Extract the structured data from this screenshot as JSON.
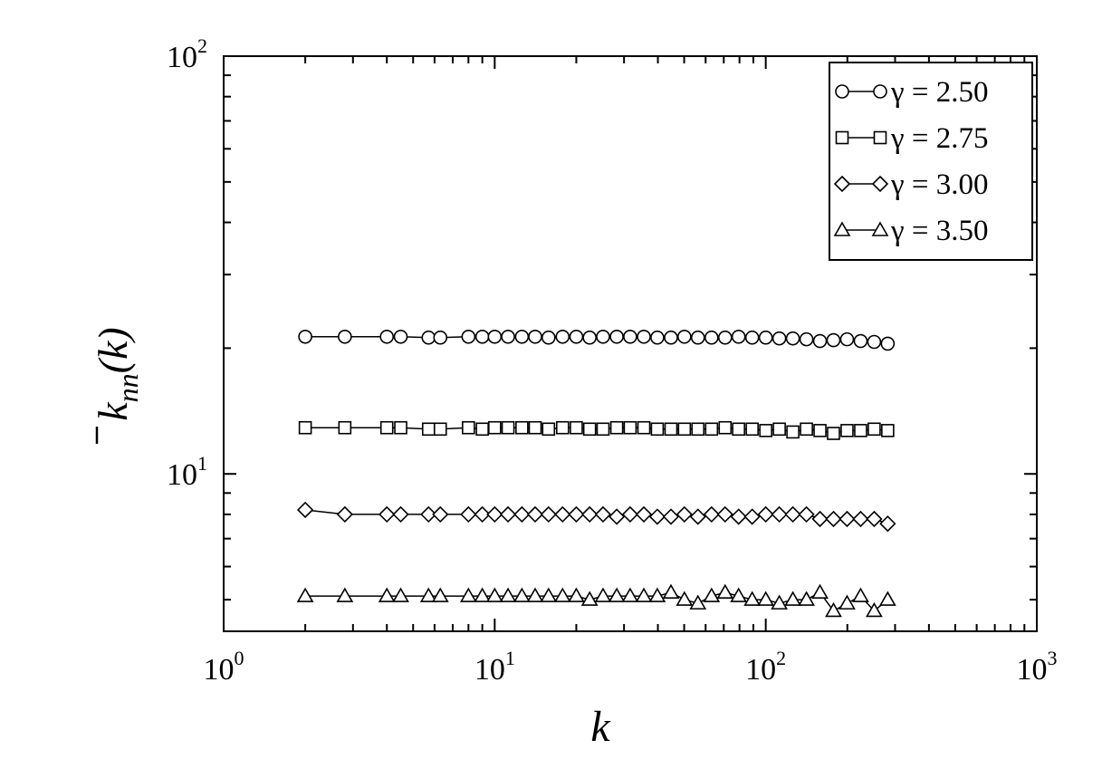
{
  "chart_data": {
    "type": "scatter",
    "xscale": "log",
    "yscale": "log",
    "xlim": [
      1,
      1000
    ],
    "ylim": [
      4.2,
      100
    ],
    "xlabel": "k",
    "ylabel": "k̄nn(k)",
    "x_tick_labels": [
      {
        "base": "10",
        "exp": "0",
        "value": 1
      },
      {
        "base": "10",
        "exp": "1",
        "value": 10
      },
      {
        "base": "10",
        "exp": "2",
        "value": 100
      },
      {
        "base": "10",
        "exp": "3",
        "value": 1000
      }
    ],
    "y_tick_labels": [
      {
        "base": "10",
        "exp": "1",
        "value": 10
      },
      {
        "base": "10",
        "exp": "2",
        "value": 100
      }
    ],
    "legend_position": "top-right",
    "grid": false,
    "x": [
      2.0,
      2.8,
      4.0,
      4.5,
      5.7,
      6.3,
      8.0,
      9.0,
      10.0,
      11.2,
      12.6,
      14.1,
      15.8,
      17.8,
      20.0,
      22.4,
      25.1,
      28.2,
      31.6,
      35.5,
      39.8,
      44.7,
      50.1,
      56.2,
      63.1,
      70.8,
      79.4,
      89.1,
      100.0,
      112.2,
      125.9,
      141.3,
      158.5,
      177.8,
      199.5,
      223.9,
      251.2,
      281.8
    ],
    "series": [
      {
        "name": "γ = 2.50",
        "marker": "circle",
        "values": [
          21.3,
          21.3,
          21.3,
          21.3,
          21.2,
          21.2,
          21.3,
          21.3,
          21.3,
          21.3,
          21.3,
          21.3,
          21.2,
          21.3,
          21.3,
          21.2,
          21.3,
          21.3,
          21.3,
          21.3,
          21.2,
          21.2,
          21.3,
          21.2,
          21.2,
          21.2,
          21.3,
          21.2,
          21.2,
          21.1,
          21.1,
          21.0,
          20.8,
          20.9,
          21.0,
          20.8,
          20.7,
          20.5
        ]
      },
      {
        "name": "γ = 2.75",
        "marker": "square",
        "values": [
          12.9,
          12.9,
          12.9,
          12.9,
          12.8,
          12.8,
          12.9,
          12.8,
          12.9,
          12.9,
          12.9,
          12.9,
          12.8,
          12.9,
          12.9,
          12.8,
          12.8,
          12.9,
          12.9,
          12.9,
          12.8,
          12.8,
          12.8,
          12.8,
          12.8,
          12.9,
          12.8,
          12.8,
          12.7,
          12.8,
          12.6,
          12.8,
          12.7,
          12.5,
          12.7,
          12.7,
          12.8,
          12.7
        ]
      },
      {
        "name": "γ = 3.00",
        "marker": "diamond",
        "values": [
          8.2,
          8.0,
          8.0,
          8.0,
          8.0,
          8.0,
          8.0,
          8.0,
          8.0,
          8.0,
          8.0,
          8.0,
          8.0,
          8.0,
          8.0,
          8.0,
          8.0,
          7.9,
          8.0,
          8.0,
          7.9,
          7.9,
          8.0,
          7.9,
          8.0,
          8.0,
          7.9,
          7.9,
          8.0,
          8.0,
          8.0,
          8.0,
          7.8,
          7.8,
          7.8,
          7.8,
          7.8,
          7.6
        ]
      },
      {
        "name": "γ = 3.50",
        "marker": "triangle",
        "values": [
          5.1,
          5.1,
          5.1,
          5.1,
          5.1,
          5.1,
          5.1,
          5.1,
          5.1,
          5.1,
          5.1,
          5.1,
          5.1,
          5.1,
          5.1,
          5.0,
          5.1,
          5.1,
          5.1,
          5.1,
          5.1,
          5.2,
          5.0,
          4.9,
          5.1,
          5.2,
          5.1,
          5.0,
          5.0,
          4.9,
          5.0,
          5.0,
          5.2,
          4.7,
          4.9,
          5.1,
          4.7,
          5.0
        ]
      }
    ]
  }
}
